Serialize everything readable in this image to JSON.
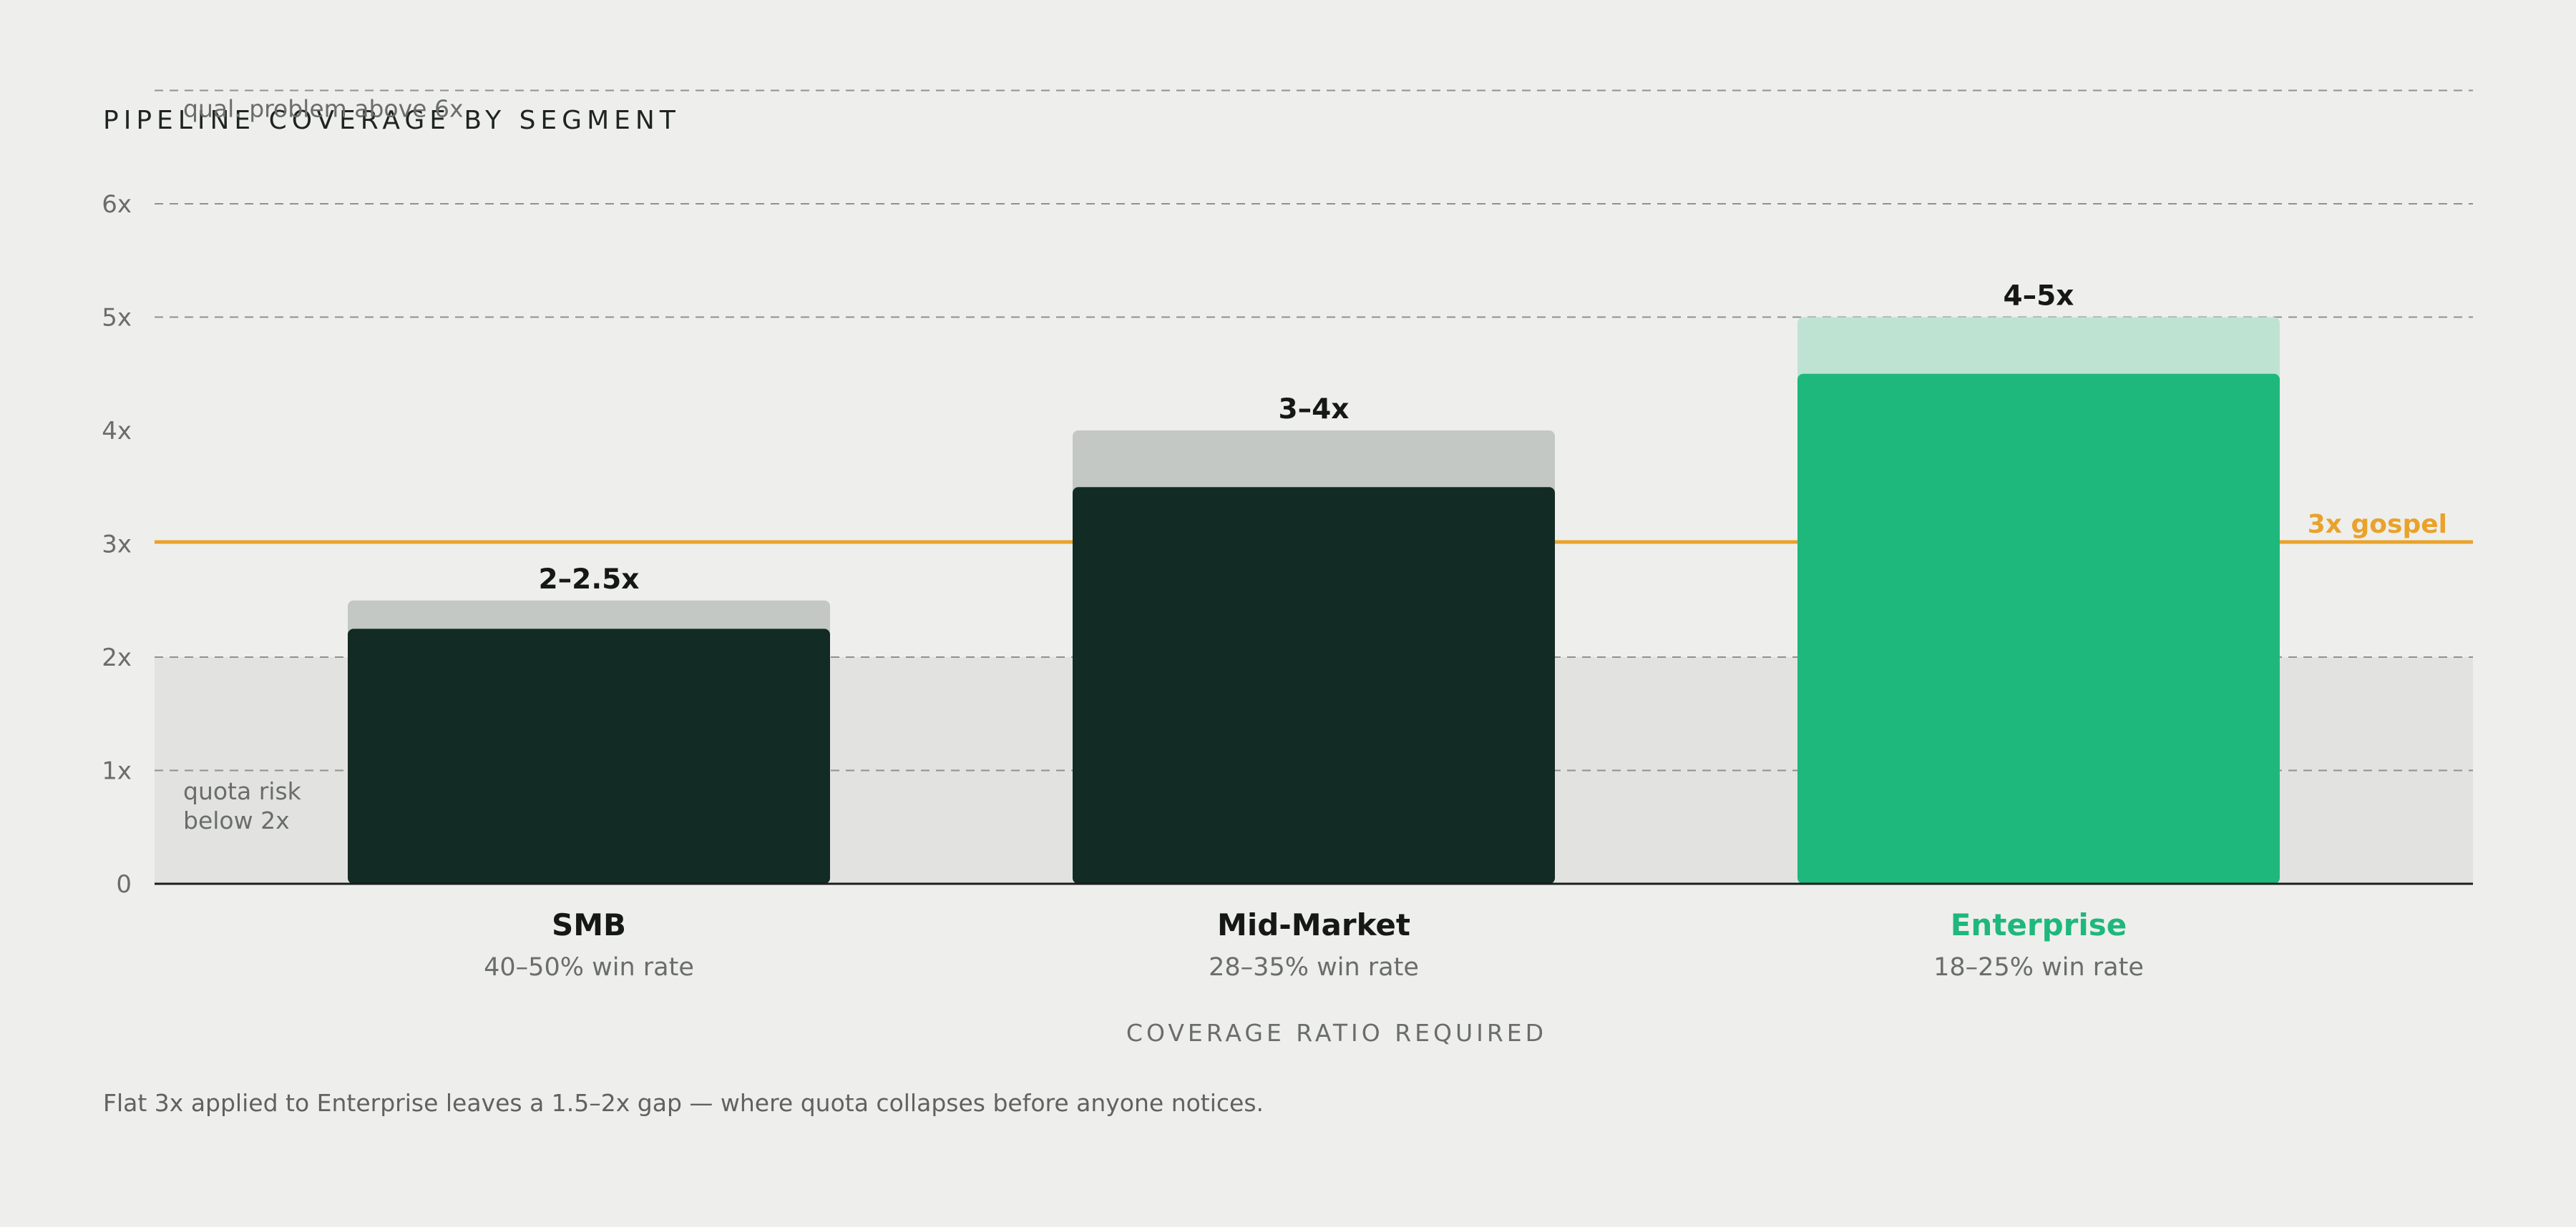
{
  "chart_data": {
    "type": "bar",
    "title": "PIPELINE COVERAGE BY SEGMENT",
    "xlabel": "COVERAGE RATIO REQUIRED",
    "ylabel": "",
    "ylim": [
      0,
      7
    ],
    "y_ticks": [
      {
        "value": 0,
        "label": "0"
      },
      {
        "value": 1,
        "label": "1x"
      },
      {
        "value": 2,
        "label": "2x"
      },
      {
        "value": 3,
        "label": "3x"
      },
      {
        "value": 4,
        "label": "4x"
      },
      {
        "value": 5,
        "label": "5x"
      },
      {
        "value": 6,
        "label": "6x"
      }
    ],
    "grid_lines": [
      1,
      2,
      5,
      6,
      7
    ],
    "risk_zone": {
      "from": 0,
      "to": 2,
      "label_lines": [
        "quota risk",
        "below 2x"
      ]
    },
    "quality_line": {
      "value": 7,
      "label": "qual. problem above 6x"
    },
    "reference_line": {
      "value": 3,
      "label": "3x gospel",
      "color": "#e9a22a"
    },
    "categories": [
      {
        "name": "SMB",
        "sub": "40–50% win rate",
        "low": 2.25,
        "high": 2.5,
        "range_label": "2–2.5x",
        "bar_color": "#122b24",
        "cap_color": "#c3c8c4",
        "name_color": "#151816"
      },
      {
        "name": "Mid-Market",
        "sub": "28–35% win rate",
        "low": 3.5,
        "high": 4.0,
        "range_label": "3–4x",
        "bar_color": "#122b24",
        "cap_color": "#c3c8c4",
        "name_color": "#151816"
      },
      {
        "name": "Enterprise",
        "sub": "18–25% win rate",
        "low": 4.5,
        "high": 5.0,
        "range_label": "4–5x",
        "bar_color": "#1eb87c",
        "cap_color": "#bfe3d3",
        "name_color": "#1eb87c"
      }
    ],
    "colors": {
      "background": "#eeefec",
      "risk_zone": "#e2e3e0",
      "grid": "#8f928f",
      "axis": "#1a1d1b"
    }
  },
  "footnote": "Flat 3x applied to Enterprise leaves a 1.5–2x gap — where quota collapses before anyone notices."
}
